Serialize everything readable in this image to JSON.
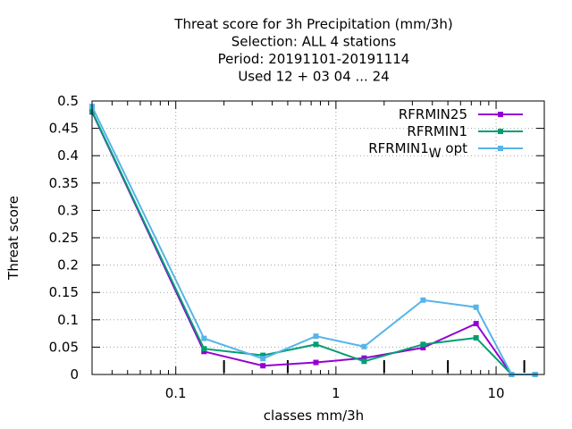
{
  "chart_data": {
    "type": "line",
    "title_lines": [
      "Threat score  for 3h Precipitation (mm/3h)",
      "Selection: ALL      4 stations",
      "Period: 20191101-20191114",
      "Used  12 + 03 04 ... 24"
    ],
    "xlabel": "classes mm/3h",
    "ylabel": "Threat score",
    "x_scale": "log",
    "xlim": [
      0.03,
      20
    ],
    "ylim": [
      0,
      0.5
    ],
    "grid": true,
    "legend_position": "top-right",
    "x_tick_labels": [
      {
        "value": 0.1,
        "label": "0.1"
      },
      {
        "value": 1,
        "label": "1"
      },
      {
        "value": 10,
        "label": "10"
      }
    ],
    "y_tick_labels": [
      {
        "value": 0,
        "label": "0"
      },
      {
        "value": 0.05,
        "label": "0.05"
      },
      {
        "value": 0.1,
        "label": "0.1"
      },
      {
        "value": 0.15,
        "label": "0.15"
      },
      {
        "value": 0.2,
        "label": "0.2"
      },
      {
        "value": 0.25,
        "label": "0.25"
      },
      {
        "value": 0.3,
        "label": "0.3"
      },
      {
        "value": 0.35,
        "label": "0.35"
      },
      {
        "value": 0.4,
        "label": "0.4"
      },
      {
        "value": 0.45,
        "label": "0.45"
      },
      {
        "value": 0.5,
        "label": "0.5"
      }
    ],
    "threshold_marks": [
      0.2,
      0.5,
      2,
      5,
      15
    ],
    "x": [
      0.03,
      0.15,
      0.35,
      0.75,
      1.5,
      3.5,
      7.5,
      12.5,
      17.5
    ],
    "series": [
      {
        "name": "RFRMIN25",
        "color": "#9400d3",
        "values": [
          0.48,
          0.042,
          0.016,
          0.022,
          0.03,
          0.049,
          0.093,
          0.0,
          0.0
        ]
      },
      {
        "name": "RFRMIN1",
        "color": "#009e73",
        "values": [
          0.481,
          0.047,
          0.035,
          0.055,
          0.024,
          0.055,
          0.067,
          0.0,
          0.0
        ]
      },
      {
        "name": "RFRMIN1",
        "name_subscript": "W",
        "name_suffix": " opt",
        "color": "#56b4e9",
        "values": [
          0.49,
          0.066,
          0.029,
          0.07,
          0.051,
          0.136,
          0.123,
          0.0,
          0.0
        ]
      }
    ]
  }
}
